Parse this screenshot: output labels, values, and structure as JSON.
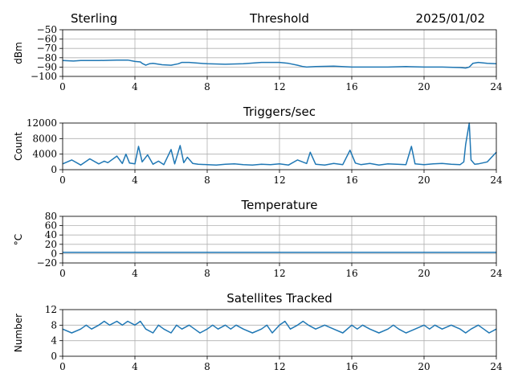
{
  "header": {
    "site": "Sterling",
    "date": "2025/01/02"
  },
  "colors": {
    "line": "#1f77b4"
  },
  "chart_data": [
    {
      "type": "line",
      "title": "Threshold",
      "xlabel": "",
      "ylabel": "dBm",
      "xlim": [
        0,
        24
      ],
      "ylim": [
        -100,
        -50
      ],
      "xticks": [
        0,
        4,
        8,
        12,
        16,
        20,
        24
      ],
      "yticks": [
        -100,
        -90,
        -80,
        -70,
        -60,
        -50
      ],
      "grid": true,
      "series": [
        {
          "x": [
            0,
            0.6,
            1,
            2,
            3,
            3.6,
            4,
            4.3,
            4.4,
            4.6,
            4.8,
            5,
            5.5,
            6,
            6.4,
            6.6,
            7,
            8,
            9,
            10,
            11,
            12,
            12.5,
            13,
            13.3,
            13.5,
            14,
            15,
            16,
            17,
            18,
            19,
            20,
            21,
            22,
            22.3,
            22.5,
            22.7,
            23,
            23.5,
            24
          ],
          "y": [
            -83,
            -83.5,
            -83,
            -83,
            -82.5,
            -82.5,
            -84,
            -84.5,
            -86,
            -88,
            -86.5,
            -86,
            -87.5,
            -88,
            -86.5,
            -85,
            -85,
            -86.5,
            -87,
            -86.5,
            -85,
            -85,
            -86,
            -88,
            -89.5,
            -90,
            -89.5,
            -89,
            -90,
            -90,
            -90,
            -89.5,
            -90,
            -90,
            -90.5,
            -91,
            -90,
            -86,
            -85,
            -86,
            -86.5
          ]
        }
      ]
    },
    {
      "type": "line",
      "title": "Triggers/sec",
      "xlabel": "",
      "ylabel": "Count",
      "xlim": [
        0,
        24
      ],
      "ylim": [
        0,
        12000
      ],
      "xticks": [
        0,
        4,
        8,
        12,
        16,
        20,
        24
      ],
      "yticks": [
        0,
        4000,
        8000,
        12000
      ],
      "grid": true,
      "series": [
        {
          "x": [
            0,
            0.5,
            1,
            1.5,
            2,
            2.3,
            2.5,
            3,
            3.3,
            3.5,
            3.7,
            4,
            4.2,
            4.4,
            4.7,
            5,
            5.3,
            5.6,
            6,
            6.2,
            6.5,
            6.7,
            6.9,
            7.2,
            7.5,
            8,
            8.5,
            9,
            9.5,
            10,
            10.5,
            11,
            11.5,
            12,
            12.5,
            13,
            13.5,
            13.7,
            14,
            14.5,
            15,
            15.5,
            15.9,
            16.2,
            16.5,
            17,
            17.5,
            18,
            18.5,
            19,
            19.3,
            19.5,
            20,
            20.5,
            21,
            21.5,
            22,
            22.2,
            22.3,
            22.5,
            22.6,
            22.8,
            23,
            23.5,
            24
          ],
          "y": [
            1500,
            2500,
            1200,
            2800,
            1500,
            2200,
            1800,
            3500,
            1600,
            4000,
            1700,
            1500,
            6000,
            2000,
            3800,
            1400,
            2200,
            1300,
            5200,
            1500,
            6200,
            1800,
            3200,
            1600,
            1400,
            1300,
            1200,
            1400,
            1500,
            1300,
            1200,
            1400,
            1300,
            1500,
            1200,
            2500,
            1600,
            4500,
            1400,
            1200,
            1600,
            1300,
            5000,
            1700,
            1300,
            1600,
            1200,
            1500,
            1400,
            1300,
            6000,
            1500,
            1300,
            1500,
            1600,
            1400,
            1300,
            2000,
            6500,
            12000,
            2500,
            1400,
            1500,
            2000,
            4500
          ]
        }
      ]
    },
    {
      "type": "line",
      "title": "Temperature",
      "xlabel": "",
      "ylabel": "°C",
      "xlim": [
        0,
        24
      ],
      "ylim": [
        -20,
        80
      ],
      "xticks": [
        0,
        4,
        8,
        12,
        16,
        20,
        24
      ],
      "yticks": [
        -20,
        0,
        20,
        40,
        60,
        80
      ],
      "grid": true,
      "series": [
        {
          "x": [
            0,
            6,
            12,
            18,
            24
          ],
          "y": [
            3,
            3,
            3,
            3,
            3
          ]
        }
      ]
    },
    {
      "type": "line",
      "title": "Satellites Tracked",
      "xlabel": "",
      "ylabel": "Number",
      "xlim": [
        0,
        24
      ],
      "ylim": [
        0,
        12
      ],
      "xticks": [
        0,
        4,
        8,
        12,
        16,
        20,
        24
      ],
      "yticks": [
        0,
        4,
        8,
        12
      ],
      "grid": true,
      "series": [
        {
          "x": [
            0,
            0.5,
            1,
            1.3,
            1.6,
            2,
            2.3,
            2.6,
            3,
            3.3,
            3.6,
            4,
            4.3,
            4.6,
            5,
            5.3,
            5.6,
            6,
            6.3,
            6.6,
            7,
            7.3,
            7.6,
            8,
            8.3,
            8.6,
            9,
            9.3,
            9.6,
            10,
            10.5,
            11,
            11.3,
            11.6,
            12,
            12.3,
            12.6,
            13,
            13.3,
            13.6,
            14,
            14.5,
            15,
            15.5,
            16,
            16.3,
            16.6,
            17,
            17.5,
            18,
            18.3,
            18.6,
            19,
            19.5,
            20,
            20.3,
            20.6,
            21,
            21.5,
            22,
            22.3,
            22.6,
            23,
            23.3,
            23.6,
            24
          ],
          "y": [
            7,
            6,
            7,
            8,
            7,
            8,
            9,
            8,
            9,
            8,
            9,
            8,
            9,
            7,
            6,
            8,
            7,
            6,
            8,
            7,
            8,
            7,
            6,
            7,
            8,
            7,
            8,
            7,
            8,
            7,
            6,
            7,
            8,
            6,
            8,
            9,
            7,
            8,
            9,
            8,
            7,
            8,
            7,
            6,
            8,
            7,
            8,
            7,
            6,
            7,
            8,
            7,
            6,
            7,
            8,
            7,
            8,
            7,
            8,
            7,
            6,
            7,
            8,
            7,
            6,
            7
          ]
        }
      ]
    }
  ]
}
